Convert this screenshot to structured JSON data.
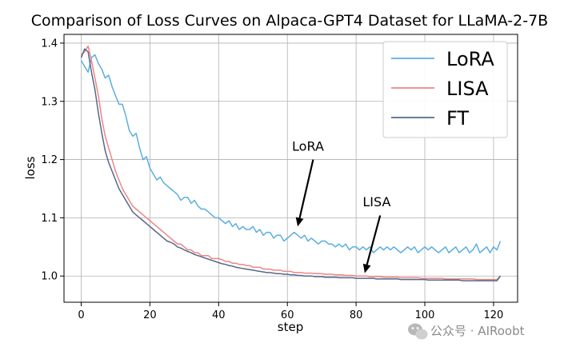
{
  "chart_data": {
    "type": "line",
    "title": "Comparison of Loss Curves on Alpaca-GPT4 Dataset for LLaMA-2-7B",
    "xlabel": "step",
    "ylabel": "loss",
    "xlim": [
      -5,
      127
    ],
    "ylim": [
      0.955,
      1.415
    ],
    "xticks": [
      0,
      20,
      40,
      60,
      80,
      100,
      120
    ],
    "yticks": [
      1.0,
      1.1,
      1.2,
      1.3,
      1.4
    ],
    "xtick_labels": [
      "0",
      "20",
      "40",
      "60",
      "80",
      "100",
      "120"
    ],
    "ytick_labels": [
      "1.0",
      "1.1",
      "1.2",
      "1.3",
      "1.4"
    ],
    "grid": true,
    "legend_position": "top-right",
    "x": [
      0,
      1,
      2,
      3,
      4,
      5,
      6,
      7,
      8,
      9,
      10,
      11,
      12,
      13,
      14,
      15,
      16,
      17,
      18,
      19,
      20,
      21,
      22,
      23,
      24,
      25,
      26,
      27,
      28,
      29,
      30,
      31,
      32,
      33,
      34,
      35,
      36,
      37,
      38,
      39,
      40,
      41,
      42,
      43,
      44,
      45,
      46,
      47,
      48,
      49,
      50,
      51,
      52,
      53,
      54,
      55,
      56,
      57,
      58,
      59,
      60,
      61,
      62,
      63,
      64,
      65,
      66,
      67,
      68,
      69,
      70,
      71,
      72,
      73,
      74,
      75,
      76,
      77,
      78,
      79,
      80,
      81,
      82,
      83,
      84,
      85,
      86,
      87,
      88,
      89,
      90,
      91,
      92,
      93,
      94,
      95,
      96,
      97,
      98,
      99,
      100,
      101,
      102,
      103,
      104,
      105,
      106,
      107,
      108,
      109,
      110,
      111,
      112,
      113,
      114,
      115,
      116,
      117,
      118,
      119,
      120,
      121,
      122
    ],
    "series": [
      {
        "name": "LoRA",
        "color": "#5aaee0",
        "values": [
          1.37,
          1.36,
          1.35,
          1.375,
          1.38,
          1.365,
          1.355,
          1.34,
          1.345,
          1.325,
          1.31,
          1.295,
          1.295,
          1.275,
          1.25,
          1.24,
          1.245,
          1.22,
          1.2,
          1.205,
          1.185,
          1.175,
          1.165,
          1.17,
          1.16,
          1.155,
          1.15,
          1.145,
          1.14,
          1.13,
          1.135,
          1.135,
          1.125,
          1.13,
          1.12,
          1.115,
          1.115,
          1.11,
          1.105,
          1.1,
          1.1,
          1.095,
          1.09,
          1.095,
          1.085,
          1.09,
          1.08,
          1.085,
          1.08,
          1.08,
          1.085,
          1.075,
          1.08,
          1.07,
          1.075,
          1.075,
          1.065,
          1.07,
          1.07,
          1.06,
          1.065,
          1.07,
          1.075,
          1.07,
          1.065,
          1.07,
          1.06,
          1.065,
          1.06,
          1.055,
          1.06,
          1.06,
          1.055,
          1.055,
          1.05,
          1.055,
          1.05,
          1.055,
          1.045,
          1.05,
          1.05,
          1.045,
          1.05,
          1.045,
          1.05,
          1.04,
          1.045,
          1.05,
          1.045,
          1.05,
          1.045,
          1.05,
          1.045,
          1.04,
          1.045,
          1.05,
          1.045,
          1.05,
          1.04,
          1.045,
          1.05,
          1.045,
          1.05,
          1.045,
          1.04,
          1.045,
          1.05,
          1.04,
          1.045,
          1.05,
          1.04,
          1.045,
          1.05,
          1.04,
          1.045,
          1.055,
          1.04,
          1.045,
          1.05,
          1.04,
          1.05,
          1.045,
          1.06
        ]
      },
      {
        "name": "LISA",
        "color": "#ee8585",
        "values": [
          1.38,
          1.385,
          1.395,
          1.37,
          1.34,
          1.31,
          1.27,
          1.24,
          1.22,
          1.2,
          1.18,
          1.165,
          1.15,
          1.14,
          1.13,
          1.12,
          1.115,
          1.11,
          1.105,
          1.1,
          1.095,
          1.09,
          1.085,
          1.08,
          1.075,
          1.07,
          1.065,
          1.06,
          1.055,
          1.055,
          1.05,
          1.045,
          1.045,
          1.04,
          1.04,
          1.035,
          1.035,
          1.035,
          1.03,
          1.03,
          1.03,
          1.028,
          1.025,
          1.025,
          1.022,
          1.022,
          1.02,
          1.02,
          1.018,
          1.018,
          1.015,
          1.015,
          1.015,
          1.012,
          1.012,
          1.012,
          1.01,
          1.01,
          1.01,
          1.008,
          1.008,
          1.008,
          1.006,
          1.006,
          1.006,
          1.005,
          1.005,
          1.005,
          1.004,
          1.004,
          1.004,
          1.003,
          1.003,
          1.003,
          1.002,
          1.002,
          1.002,
          1.001,
          1.001,
          1.001,
          1.0,
          1.0,
          1.0,
          1.0,
          0.999,
          0.999,
          0.999,
          0.999,
          0.998,
          0.998,
          0.998,
          0.998,
          0.998,
          0.997,
          0.997,
          0.997,
          0.997,
          0.997,
          0.997,
          0.996,
          0.996,
          0.996,
          0.996,
          0.996,
          0.996,
          0.996,
          0.995,
          0.995,
          0.995,
          0.995,
          0.995,
          0.995,
          0.995,
          0.995,
          0.995,
          0.994,
          0.994,
          0.994,
          0.994,
          0.994,
          0.994,
          0.994,
          1.0
        ]
      },
      {
        "name": "FT",
        "color": "#56688a",
        "values": [
          1.375,
          1.39,
          1.385,
          1.35,
          1.32,
          1.28,
          1.245,
          1.215,
          1.195,
          1.18,
          1.165,
          1.15,
          1.14,
          1.13,
          1.12,
          1.11,
          1.105,
          1.1,
          1.095,
          1.09,
          1.085,
          1.08,
          1.075,
          1.07,
          1.065,
          1.06,
          1.058,
          1.055,
          1.05,
          1.048,
          1.045,
          1.042,
          1.04,
          1.037,
          1.035,
          1.033,
          1.031,
          1.029,
          1.027,
          1.025,
          1.023,
          1.021,
          1.02,
          1.018,
          1.017,
          1.015,
          1.014,
          1.013,
          1.012,
          1.011,
          1.01,
          1.009,
          1.008,
          1.007,
          1.006,
          1.006,
          1.005,
          1.004,
          1.004,
          1.003,
          1.003,
          1.002,
          1.002,
          1.001,
          1.001,
          1.0,
          1.0,
          1.0,
          0.999,
          0.999,
          0.999,
          0.998,
          0.998,
          0.998,
          0.998,
          0.997,
          0.997,
          0.997,
          0.997,
          0.997,
          0.996,
          0.996,
          0.996,
          0.996,
          0.996,
          0.996,
          0.995,
          0.995,
          0.995,
          0.995,
          0.995,
          0.995,
          0.995,
          0.994,
          0.994,
          0.994,
          0.994,
          0.994,
          0.994,
          0.994,
          0.994,
          0.993,
          0.993,
          0.993,
          0.993,
          0.993,
          0.993,
          0.993,
          0.993,
          0.993,
          0.993,
          0.992,
          0.992,
          0.992,
          0.992,
          0.992,
          0.992,
          0.992,
          0.992,
          0.992,
          0.992,
          0.992,
          1.0
        ]
      }
    ],
    "annotations": [
      {
        "text": "LoRA",
        "text_at": [
          66,
          1.215
        ],
        "arrow_from": [
          67.5,
          1.2
        ],
        "arrow_to": [
          63,
          1.085
        ]
      },
      {
        "text": "LISA",
        "text_at": [
          86,
          1.12
        ],
        "arrow_from": [
          87,
          1.104
        ],
        "arrow_to": [
          82.5,
          1.005
        ]
      }
    ]
  },
  "watermark": {
    "text": "公众号 · AIRoobt",
    "icon": "wechat-icon"
  }
}
